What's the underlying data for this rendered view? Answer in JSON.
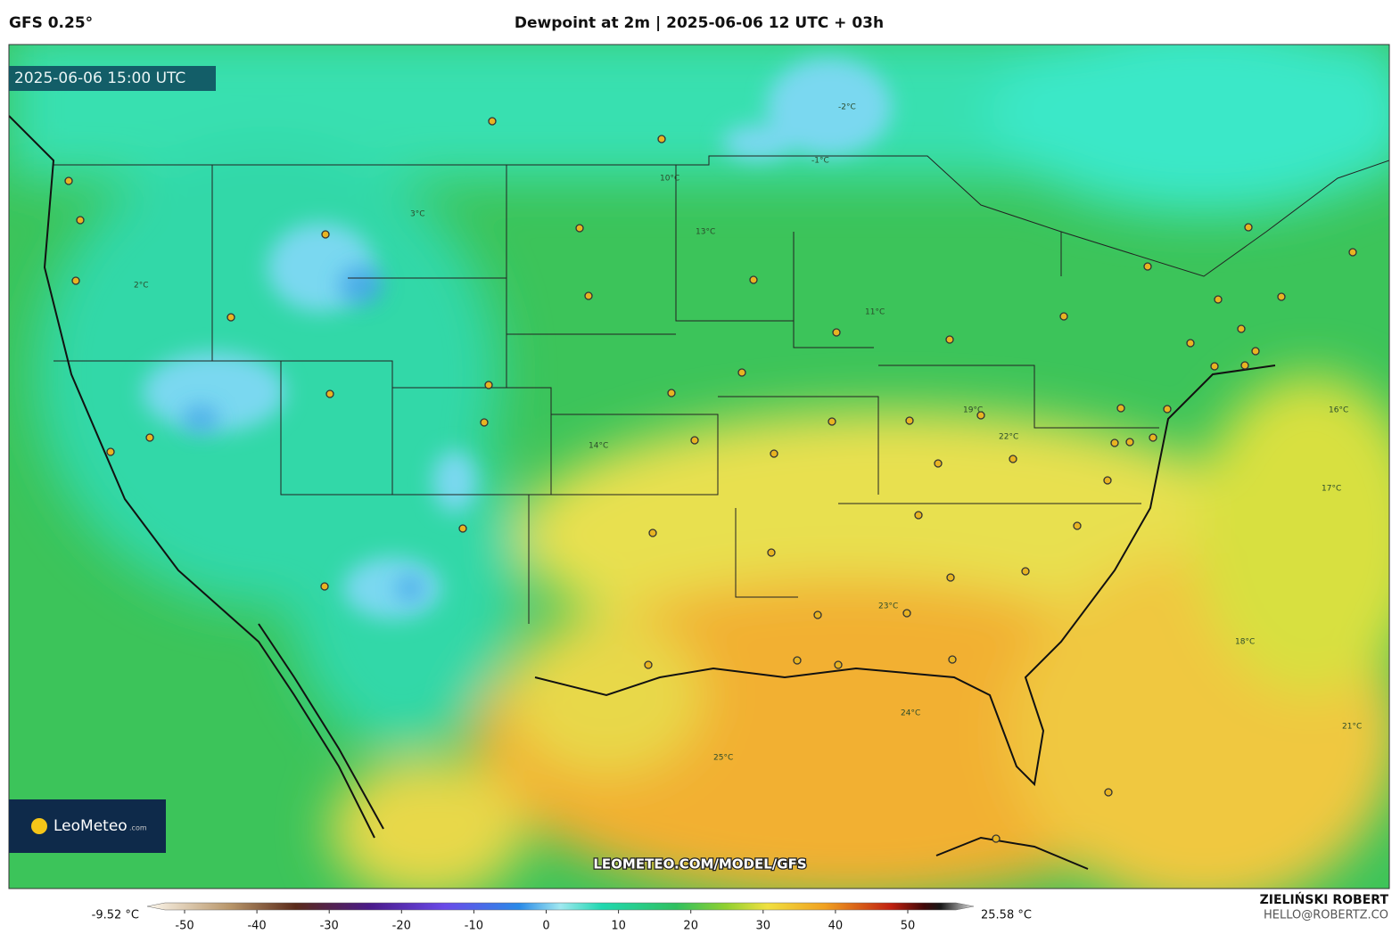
{
  "header": {
    "model": "GFS 0.25°",
    "title": "Dewpoint at 2m | 2025-06-06 12 UTC + 03h"
  },
  "map": {
    "valid_time": "2025-06-06 15:00 UTC",
    "logo": "LeoMeteo",
    "logo_suffix": ".com",
    "watermark": "LEOMETEO.COM/MODEL/GFS",
    "contour_labels": [
      "2°C",
      "3°C",
      "-2°C",
      "-1°C",
      "13°C",
      "14°C",
      "19°C",
      "22°C",
      "23°C",
      "24°C",
      "25°C",
      "16°C",
      "17°C",
      "21°C",
      "18°C",
      "11°C",
      "10°C"
    ]
  },
  "colorbar": {
    "min_label": "-9.52 °C",
    "max_label": "25.58 °C",
    "ticks": [
      -50,
      -40,
      -30,
      -20,
      -10,
      0,
      10,
      20,
      30,
      40,
      50
    ]
  },
  "credit": {
    "author": "ZIELIŃSKI ROBERT",
    "contact": "HELLO@ROBERTZ.CO"
  }
}
